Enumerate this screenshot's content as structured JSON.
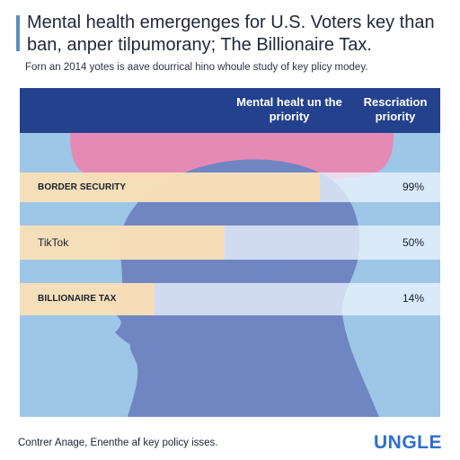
{
  "title": "Mental health emergenges for U.S. Voters key than ban, anper tilpumorany; The Billionaire Tax.",
  "subtitle": "Forn an 2014 yotes is aave dourrical hino whoule study of key plicy modey.",
  "column_headers": {
    "middle": "Mental healt un the priority",
    "right": "Rescriation priority"
  },
  "chart_data": {
    "type": "bar",
    "categories": [
      "BORDER SECURITY",
      "TikTok",
      "BILLIONAIRE TAX"
    ],
    "values": [
      99,
      50,
      14
    ],
    "value_labels": [
      "99%",
      "50%",
      "14%"
    ],
    "title": "Mental health emergenges for U.S. Voters key than ban, anper tilpumorany; The Billionaire Tax.",
    "xlabel": "",
    "ylabel": "",
    "ylim": [
      0,
      100
    ],
    "grid": false,
    "legend": "none"
  },
  "footnote": "Contrer Anage, Enenthe af key policy isses.",
  "brand": "UNGLE",
  "colors": {
    "title_accent": "#5f8dbf",
    "header_band": "#23418c",
    "panel_background": "#9ec6e6",
    "head_illustration": "#6f86c3",
    "pink_shape": "#e58ab5",
    "bar_fill": "#f7ddb4",
    "brand": "#2f6fcc"
  }
}
